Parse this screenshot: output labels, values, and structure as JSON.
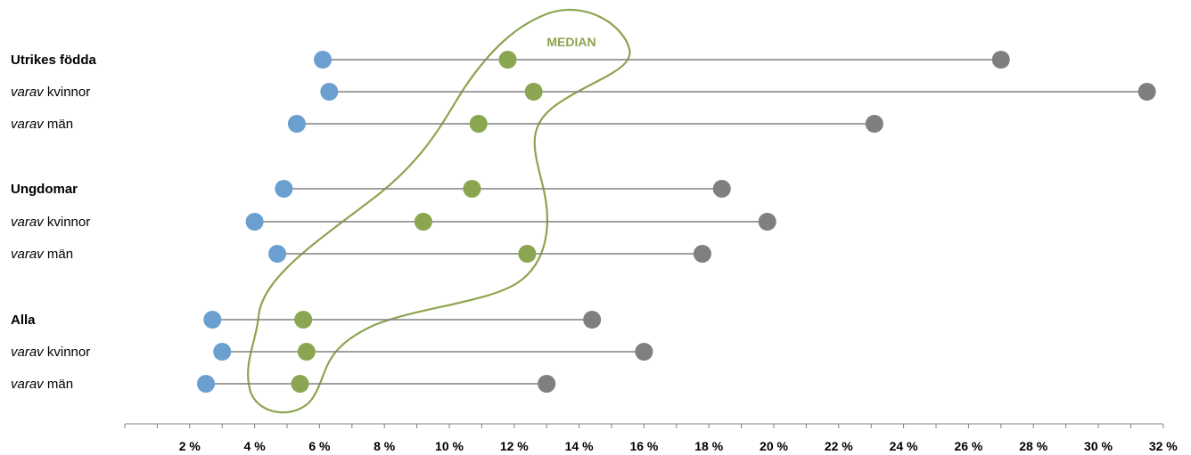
{
  "chart_data": {
    "type": "scatter",
    "subtype": "dumbbell",
    "title": "",
    "xlabel": "",
    "ylabel": "",
    "xlim": [
      0,
      32
    ],
    "x_ticks": [
      "2 %",
      "4 %",
      "6 %",
      "8 %",
      "10 %",
      "12 %",
      "14 %",
      "16 %",
      "18 %",
      "20 %",
      "22 %",
      "24 %",
      "26 %",
      "28 %",
      "30 %",
      "32 %"
    ],
    "annotation": "MEDIAN",
    "colors": {
      "low": "#6a9fd0",
      "median": "#8aa650",
      "high": "#7f7f7f",
      "line": "#808080",
      "outline": "#8ca44f"
    },
    "rows": [
      {
        "prefix": "",
        "label": "Utrikes födda",
        "group_header": true,
        "low": 6.1,
        "median": 11.8,
        "high": 27.0
      },
      {
        "prefix": "varav",
        "label": " kvinnor",
        "group_header": false,
        "low": 6.3,
        "median": 12.6,
        "high": 31.5
      },
      {
        "prefix": "varav",
        "label": " män",
        "group_header": false,
        "low": 5.3,
        "median": 10.9,
        "high": 23.1
      },
      {
        "prefix": "",
        "label": "Ungdomar",
        "group_header": true,
        "low": 4.9,
        "median": 10.7,
        "high": 18.4
      },
      {
        "prefix": "varav",
        "label": " kvinnor",
        "group_header": false,
        "low": 4.0,
        "median": 9.2,
        "high": 19.8
      },
      {
        "prefix": "varav",
        "label": " män",
        "group_header": false,
        "low": 4.7,
        "median": 12.4,
        "high": 17.8
      },
      {
        "prefix": "",
        "label": "Alla",
        "group_header": true,
        "low": 2.7,
        "median": 5.5,
        "high": 14.4
      },
      {
        "prefix": "varav",
        "label": " kvinnor",
        "group_header": false,
        "low": 3.0,
        "median": 5.6,
        "high": 16.0
      },
      {
        "prefix": "varav",
        "label": " män",
        "group_header": false,
        "low": 2.5,
        "median": 5.4,
        "high": 13.0
      }
    ]
  }
}
